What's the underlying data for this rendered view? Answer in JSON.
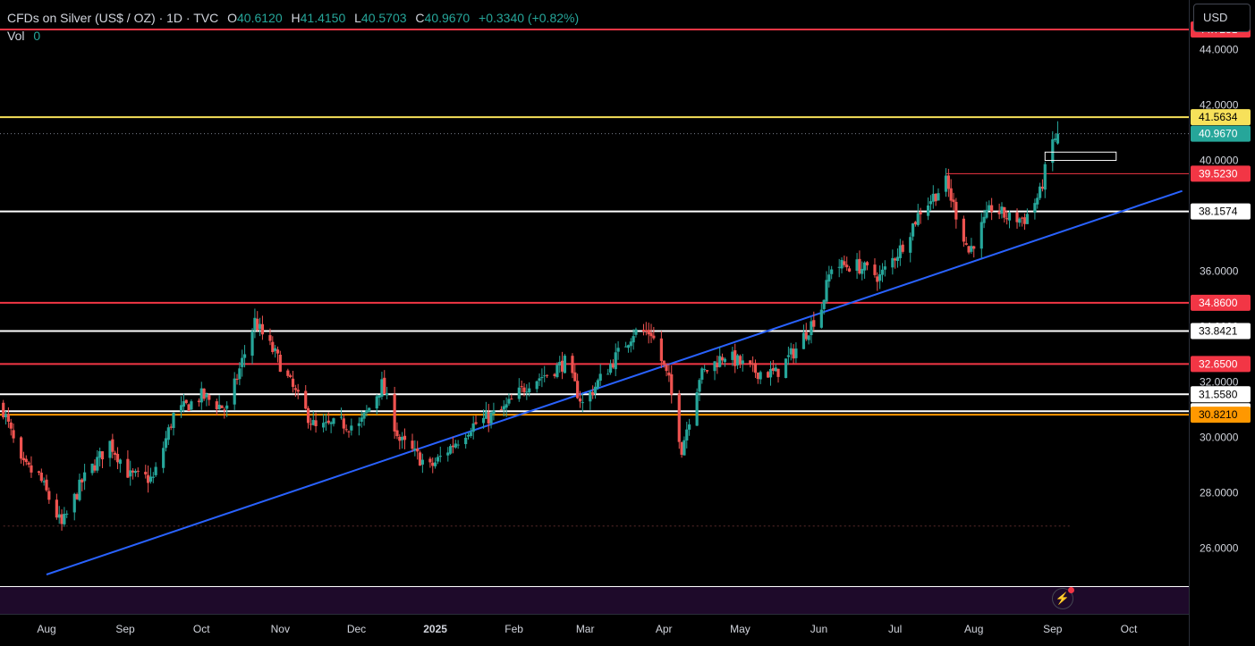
{
  "legend": {
    "symbol": "CFDs on Silver (US$ / OZ) · 1D · TVC",
    "o_label": "O",
    "o_value": "40.6120",
    "h_label": "H",
    "h_value": "41.4150",
    "l_label": "L",
    "l_value": "40.5703",
    "c_label": "C",
    "c_value": "40.9670",
    "change": "+0.3340 (+0.82%)",
    "vol_label": "Vol",
    "vol_value": "0"
  },
  "currency_button": "USD",
  "lightning_icon": "lightning-icon",
  "colors": {
    "up": "#26a69a",
    "down": "#ef5350",
    "red_line": "#f23645",
    "yellow_line": "#f7e15a",
    "orange_line": "#ff9800",
    "white_line": "#ffffff",
    "trendline": "#2962ff",
    "volume_band": "#1e0a2a"
  },
  "chart_data": {
    "type": "candlestick",
    "y_scale": "linear",
    "ylim": [
      25.0,
      45.4
    ],
    "y_ticks": [
      "26.0000",
      "28.0000",
      "30.0000",
      "32.0000",
      "34.0000",
      "36.0000",
      "38.0000",
      "40.0000",
      "42.0000",
      "44.0000"
    ],
    "x_ticks": [
      "Aug",
      "Sep",
      "Oct",
      "Nov",
      "Dec",
      "2025",
      "Feb",
      "Mar",
      "Apr",
      "May",
      "Jun",
      "Jul",
      "Aug",
      "Sep",
      "Oct"
    ],
    "x_tick_dates": [
      "2024-08-01",
      "2024-09-01",
      "2024-10-01",
      "2024-11-01",
      "2024-12-01",
      "2025-01-01",
      "2025-02-01",
      "2025-03-01",
      "2025-04-01",
      "2025-05-01",
      "2025-06-01",
      "2025-07-01",
      "2025-08-01",
      "2025-09-01",
      "2025-10-01"
    ],
    "date_range": [
      "2024-07-15",
      "2025-10-22"
    ],
    "last_candle_date": "2025-09-03",
    "horizontal_levels": [
      {
        "price": 44.7281,
        "label": "44.7281",
        "color": "red"
      },
      {
        "price": 41.5634,
        "label": "41.5634",
        "color": "yellow"
      },
      {
        "price": 40.967,
        "label": "40.9670",
        "color": "green",
        "style": "dotted"
      },
      {
        "price": 39.523,
        "label": "39.5230",
        "color": "red",
        "style": "ray",
        "from_date": "2025-07-21"
      },
      {
        "price": 38.1574,
        "label": "38.1574",
        "color": "white"
      },
      {
        "price": 34.86,
        "label": "34.8600",
        "color": "red"
      },
      {
        "price": 33.8421,
        "label": "33.8421",
        "color": "white"
      },
      {
        "price": 32.65,
        "label": "32.6500",
        "color": "red"
      },
      {
        "price": 31.558,
        "label": "31.5580",
        "color": "white"
      },
      {
        "price": 30.9467,
        "label": "30.9467",
        "color": "white"
      },
      {
        "price": 30.821,
        "label": "30.8210",
        "color": "orange"
      }
    ],
    "low_level": {
      "price": 26.8,
      "from_date": "2024-07-15",
      "to_date": "2025-09-08"
    },
    "trendline": {
      "p1": {
        "date": "2024-08-01",
        "price": 25.05
      },
      "p2": {
        "date": "2025-10-22",
        "price": 38.9
      }
    },
    "box": {
      "date_from": "2025-08-29",
      "date_to": "2025-09-26",
      "price_low": 40.0,
      "price_high": 40.3
    },
    "anchors": [
      [
        "2024-07-15",
        31.0
      ],
      [
        "2024-07-22",
        29.0
      ],
      [
        "2024-07-29",
        28.6
      ],
      [
        "2024-08-07",
        26.8
      ],
      [
        "2024-08-15",
        28.4
      ],
      [
        "2024-08-26",
        29.8
      ],
      [
        "2024-09-03",
        28.6
      ],
      [
        "2024-09-12",
        28.5
      ],
      [
        "2024-09-20",
        30.8
      ],
      [
        "2024-10-01",
        31.5
      ],
      [
        "2024-10-11",
        31.0
      ],
      [
        "2024-10-22",
        34.2
      ],
      [
        "2024-10-25",
        33.7
      ],
      [
        "2024-10-30",
        33.0
      ],
      [
        "2024-11-08",
        31.4
      ],
      [
        "2024-11-15",
        30.3
      ],
      [
        "2024-11-25",
        30.5
      ],
      [
        "2024-12-02",
        30.4
      ],
      [
        "2024-12-11",
        31.9
      ],
      [
        "2024-12-18",
        29.9
      ],
      [
        "2024-12-30",
        28.9
      ],
      [
        "2025-01-15",
        30.4
      ],
      [
        "2025-01-28",
        31.0
      ],
      [
        "2025-02-07",
        32.0
      ],
      [
        "2025-02-14",
        32.3
      ],
      [
        "2025-02-21",
        32.7
      ],
      [
        "2025-02-28",
        31.2
      ],
      [
        "2025-03-10",
        32.5
      ],
      [
        "2025-03-20",
        33.8
      ],
      [
        "2025-03-27",
        33.8
      ],
      [
        "2025-04-03",
        32.0
      ],
      [
        "2025-04-08",
        29.6
      ],
      [
        "2025-04-15",
        32.2
      ],
      [
        "2025-04-25",
        33.0
      ],
      [
        "2025-05-06",
        32.4
      ],
      [
        "2025-05-15",
        32.3
      ],
      [
        "2025-05-23",
        33.2
      ],
      [
        "2025-06-02",
        34.7
      ],
      [
        "2025-06-06",
        36.2
      ],
      [
        "2025-06-16",
        36.2
      ],
      [
        "2025-06-25",
        35.8
      ],
      [
        "2025-07-03",
        36.8
      ],
      [
        "2025-07-11",
        38.2
      ],
      [
        "2025-07-21",
        39.2
      ],
      [
        "2025-07-30",
        36.7
      ],
      [
        "2025-08-08",
        38.3
      ],
      [
        "2025-08-15",
        37.9
      ],
      [
        "2025-08-21",
        37.9
      ],
      [
        "2025-08-27",
        38.8
      ],
      [
        "2025-08-29",
        39.6
      ],
      [
        "2025-09-01",
        40.7
      ],
      [
        "2025-09-03",
        40.967
      ]
    ]
  }
}
